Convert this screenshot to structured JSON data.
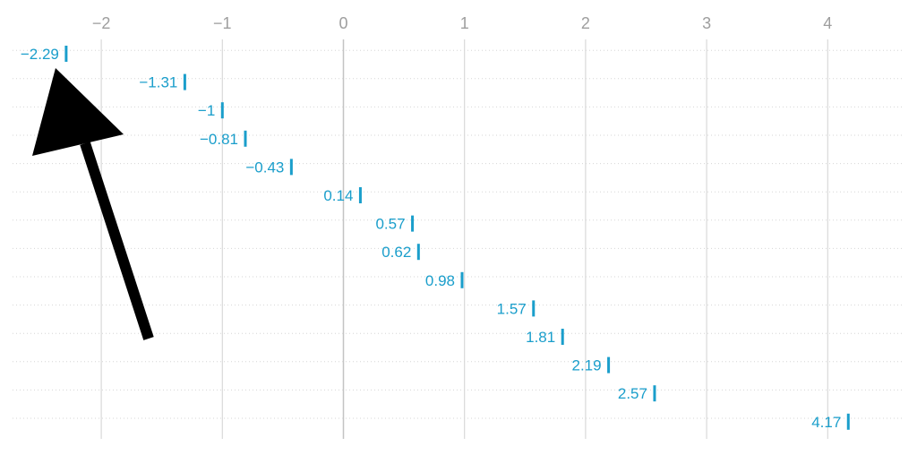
{
  "chart_data": {
    "type": "scatter",
    "title": "",
    "xlabel": "",
    "ylabel": "",
    "x_ticks": [
      -2,
      -1,
      0,
      1,
      2,
      3,
      4
    ],
    "xlim": [
      -2.84,
      4.75
    ],
    "grid": {
      "vertical": true,
      "horizontal": "dotted"
    },
    "values": [
      -2.29,
      -1.31,
      -1,
      -0.81,
      -0.43,
      0.14,
      0.57,
      0.62,
      0.98,
      1.57,
      1.81,
      2.19,
      2.57,
      4.17
    ],
    "labels": [
      "−2.29",
      "−1.31",
      "−1",
      "−0.81",
      "−0.43",
      "0.14",
      "0.57",
      "0.62",
      "0.98",
      "1.57",
      "1.81",
      "2.19",
      "2.57",
      "4.17"
    ],
    "x_tick_labels": [
      "−2",
      "−1",
      "0",
      "1",
      "2",
      "3",
      "4"
    ],
    "annotations": [
      {
        "type": "arrow",
        "color": "#000000",
        "points_to": "−2.29"
      }
    ],
    "mark_color": "#1a9ecb",
    "label_color": "#1a9ecb",
    "axis_text_color": "#9e9e9e"
  }
}
